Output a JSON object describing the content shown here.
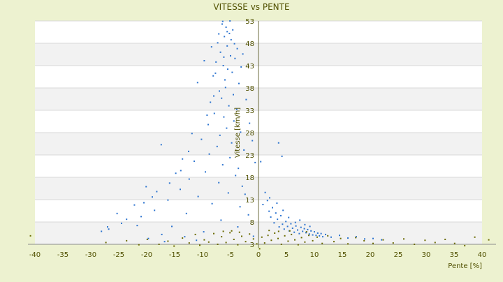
{
  "chart_data": {
    "type": "scatter",
    "title": "VITESSE vs PENTE",
    "xlabel": "Pente [%]",
    "ylabel": "Vitesse [km/h]",
    "xlim": [
      -40,
      40
    ],
    "ylim": [
      3,
      53
    ],
    "xticks": [
      -40,
      -35,
      -30,
      -25,
      -20,
      -15,
      -10,
      -5,
      0,
      5,
      10,
      15,
      20,
      25,
      30,
      35,
      40
    ],
    "yticks": [
      3,
      8,
      13,
      18,
      23,
      28,
      33,
      38,
      43,
      48,
      53
    ],
    "grid": "horizontal alternating bands",
    "legend": "none",
    "colors": {
      "background": "#edf2d0",
      "plot_band_light": "#ffffff",
      "plot_band_dark": "#f2f2f2",
      "blue_series": "#2e75d0",
      "olive_series": "#6b6b00",
      "text": "#505000"
    },
    "series": [
      {
        "color": "#2e75d0",
        "points": [
          [
            -6.5,
            52.3
          ],
          [
            -5.8,
            51.6
          ],
          [
            -5.2,
            50.2
          ],
          [
            -6.1,
            49.5
          ],
          [
            -4.9,
            48.8
          ],
          [
            -7.3,
            48.1
          ],
          [
            -5.6,
            47.4
          ],
          [
            -3.8,
            46.8
          ],
          [
            -6.8,
            46.0
          ],
          [
            -5.0,
            45.2
          ],
          [
            -4.2,
            44.6
          ],
          [
            -7.6,
            43.8
          ],
          [
            -6.3,
            43.0
          ],
          [
            -5.5,
            42.2
          ],
          [
            -4.7,
            41.5
          ],
          [
            -8.1,
            40.7
          ],
          [
            -6.0,
            39.8
          ],
          [
            -3.5,
            39.0
          ],
          [
            -5.9,
            38.1
          ],
          [
            -7.0,
            37.3
          ],
          [
            -4.5,
            36.5
          ],
          [
            -6.6,
            35.7
          ],
          [
            -8.6,
            34.8
          ],
          [
            -5.3,
            34.0
          ],
          [
            -3.9,
            33.2
          ],
          [
            -7.9,
            32.3
          ],
          [
            -6.2,
            31.5
          ],
          [
            -4.4,
            30.6
          ],
          [
            -9.0,
            29.8
          ],
          [
            -5.7,
            29.0
          ],
          [
            -3.2,
            28.1
          ],
          [
            -6.9,
            27.4
          ],
          [
            -10.2,
            26.5
          ],
          [
            -4.8,
            25.7
          ],
          [
            -7.4,
            24.9
          ],
          [
            -2.6,
            24.1
          ],
          [
            -8.8,
            23.2
          ],
          [
            -5.1,
            22.4
          ],
          [
            -11.5,
            21.6
          ],
          [
            -6.4,
            20.8
          ],
          [
            -3.6,
            20.0
          ],
          [
            -9.5,
            19.2
          ],
          [
            -4.1,
            18.4
          ],
          [
            -12.4,
            17.6
          ],
          [
            -7.1,
            16.8
          ],
          [
            -2.9,
            16.0
          ],
          [
            -14.0,
            15.3
          ],
          [
            -5.4,
            14.5
          ],
          [
            -10.8,
            13.7
          ],
          [
            -16.2,
            12.9
          ],
          [
            -8.3,
            12.1
          ],
          [
            -3.3,
            11.4
          ],
          [
            -18.6,
            10.6
          ],
          [
            -12.9,
            9.9
          ],
          [
            -21.0,
            9.2
          ],
          [
            -6.7,
            8.4
          ],
          [
            -24.5,
            7.7
          ],
          [
            -15.5,
            7.0
          ],
          [
            -26.8,
            6.4
          ],
          [
            -9.8,
            5.8
          ],
          [
            -17.3,
            5.2
          ],
          [
            -13.2,
            4.7
          ],
          [
            -19.7,
            4.3
          ],
          [
            -11.1,
            3.9
          ],
          [
            -16.8,
            3.6
          ],
          [
            -22.2,
            11.8
          ],
          [
            -19.0,
            13.6
          ],
          [
            -14.8,
            18.9
          ],
          [
            -17.4,
            25.3
          ],
          [
            -20.1,
            15.9
          ],
          [
            -13.6,
            22.1
          ],
          [
            -11.9,
            27.8
          ],
          [
            -9.2,
            31.9
          ],
          [
            -8.0,
            36.2
          ],
          [
            -7.7,
            41.3
          ],
          [
            -6.2,
            44.9
          ],
          [
            -5.6,
            50.6
          ],
          [
            -4.3,
            47.9
          ],
          [
            -3.1,
            42.7
          ],
          [
            -2.2,
            35.4
          ],
          [
            -1.6,
            30.1
          ],
          [
            -1.1,
            26.2
          ],
          [
            -0.6,
            21.3
          ],
          [
            -2.4,
            14.2
          ],
          [
            -1.8,
            9.6
          ],
          [
            -3.7,
            6.9
          ],
          [
            -0.9,
            4.8
          ],
          [
            0.4,
            21.5
          ],
          [
            0.8,
            11.9
          ],
          [
            1.2,
            14.6
          ],
          [
            1.6,
            12.8
          ],
          [
            1.9,
            10.4
          ],
          [
            2.2,
            9.1
          ],
          [
            2.5,
            11.2
          ],
          [
            2.8,
            7.8
          ],
          [
            3.1,
            10.0
          ],
          [
            3.4,
            8.6
          ],
          [
            3.7,
            6.9
          ],
          [
            4.0,
            9.4
          ],
          [
            4.3,
            7.5
          ],
          [
            4.6,
            6.4
          ],
          [
            4.9,
            8.1
          ],
          [
            5.2,
            7.0
          ],
          [
            5.5,
            6.0
          ],
          [
            5.8,
            7.6
          ],
          [
            6.1,
            6.6
          ],
          [
            6.4,
            5.7
          ],
          [
            6.7,
            7.1
          ],
          [
            7.0,
            6.2
          ],
          [
            7.3,
            5.4
          ],
          [
            7.6,
            6.8
          ],
          [
            7.9,
            5.9
          ],
          [
            8.2,
            6.5
          ],
          [
            8.5,
            5.6
          ],
          [
            8.8,
            6.3
          ],
          [
            9.1,
            5.3
          ],
          [
            9.4,
            6.0
          ],
          [
            9.7,
            5.1
          ],
          [
            10.0,
            5.8
          ],
          [
            10.3,
            5.0
          ],
          [
            10.6,
            5.5
          ],
          [
            10.9,
            4.9
          ],
          [
            11.2,
            5.4
          ],
          [
            11.5,
            4.7
          ],
          [
            12.0,
            5.2
          ],
          [
            13.0,
            4.6
          ],
          [
            14.5,
            5.0
          ],
          [
            16.0,
            4.4
          ],
          [
            17.5,
            4.7
          ],
          [
            19.0,
            4.2
          ],
          [
            20.5,
            4.3
          ],
          [
            22.0,
            4.0
          ],
          [
            6.6,
            7.9
          ],
          [
            7.4,
            8.4
          ],
          [
            8.3,
            7.4
          ],
          [
            9.2,
            7.0
          ],
          [
            5.4,
            9.0
          ],
          [
            4.4,
            10.6
          ],
          [
            3.3,
            12.2
          ],
          [
            2.0,
            13.4
          ],
          [
            4.2,
            22.7
          ],
          [
            3.6,
            25.7
          ],
          [
            -6.4,
            52.9
          ],
          [
            -5.1,
            53.0
          ],
          [
            -4.6,
            51.0
          ],
          [
            -7.1,
            50.1
          ],
          [
            -8.4,
            47.2
          ],
          [
            -2.8,
            45.6
          ],
          [
            -9.7,
            44.1
          ],
          [
            -10.9,
            39.2
          ],
          [
            -25.3,
            9.9
          ],
          [
            -23.6,
            8.6
          ],
          [
            -27.0,
            6.9
          ],
          [
            -28.1,
            5.9
          ],
          [
            -21.7,
            7.2
          ],
          [
            -20.5,
            12.3
          ],
          [
            -18.2,
            14.8
          ],
          [
            -15.9,
            16.7
          ],
          [
            -13.9,
            19.5
          ],
          [
            -12.5,
            23.8
          ]
        ]
      },
      {
        "color": "#6b6b00",
        "points": [
          [
            -40.8,
            4.9
          ],
          [
            -27.3,
            3.4
          ],
          [
            -23.6,
            3.8
          ],
          [
            -21.4,
            2.9
          ],
          [
            -19.9,
            4.1
          ],
          [
            -17.8,
            3.0
          ],
          [
            -16.2,
            3.7
          ],
          [
            -15.1,
            2.6
          ],
          [
            -13.6,
            4.4
          ],
          [
            -12.4,
            3.3
          ],
          [
            -11.3,
            5.2
          ],
          [
            -10.5,
            2.8
          ],
          [
            -9.7,
            4.0
          ],
          [
            -8.9,
            3.5
          ],
          [
            -8.0,
            5.4
          ],
          [
            -7.3,
            3.0
          ],
          [
            -6.6,
            4.7
          ],
          [
            -5.8,
            3.4
          ],
          [
            -5.1,
            5.6
          ],
          [
            -4.4,
            4.1
          ],
          [
            -3.7,
            2.9
          ],
          [
            -3.0,
            4.8
          ],
          [
            -2.3,
            3.6
          ],
          [
            -1.6,
            5.3
          ],
          [
            -0.9,
            4.2
          ],
          [
            -0.3,
            3.1
          ],
          [
            0.2,
            2.0
          ],
          [
            0.6,
            4.6
          ],
          [
            1.1,
            3.3
          ],
          [
            1.7,
            5.0
          ],
          [
            2.3,
            3.9
          ],
          [
            2.9,
            5.5
          ],
          [
            3.5,
            4.3
          ],
          [
            4.1,
            3.0
          ],
          [
            4.7,
            4.9
          ],
          [
            5.3,
            3.7
          ],
          [
            5.9,
            5.2
          ],
          [
            6.5,
            4.0
          ],
          [
            7.1,
            2.9
          ],
          [
            7.7,
            4.5
          ],
          [
            8.3,
            3.5
          ],
          [
            9.0,
            5.0
          ],
          [
            9.7,
            3.8
          ],
          [
            10.5,
            4.6
          ],
          [
            11.4,
            3.2
          ],
          [
            12.4,
            4.9
          ],
          [
            13.5,
            3.6
          ],
          [
            14.7,
            4.3
          ],
          [
            16.0,
            3.1
          ],
          [
            17.4,
            4.5
          ],
          [
            18.9,
            3.8
          ],
          [
            20.5,
            3.2
          ],
          [
            22.3,
            4.0
          ],
          [
            24.1,
            3.3
          ],
          [
            26.0,
            4.2
          ],
          [
            27.9,
            3.0
          ],
          [
            29.8,
            3.9
          ],
          [
            31.6,
            3.4
          ],
          [
            33.4,
            4.1
          ],
          [
            35.1,
            3.2
          ],
          [
            36.9,
            2.7
          ],
          [
            38.7,
            4.6
          ],
          [
            41.2,
            4.0
          ],
          [
            -6.3,
            5.9
          ],
          [
            -4.8,
            6.0
          ],
          [
            -3.4,
            5.7
          ],
          [
            1.9,
            6.1
          ],
          [
            3.6,
            5.9
          ],
          [
            5.6,
            6.0
          ],
          [
            8.6,
            5.8
          ]
        ]
      }
    ]
  }
}
